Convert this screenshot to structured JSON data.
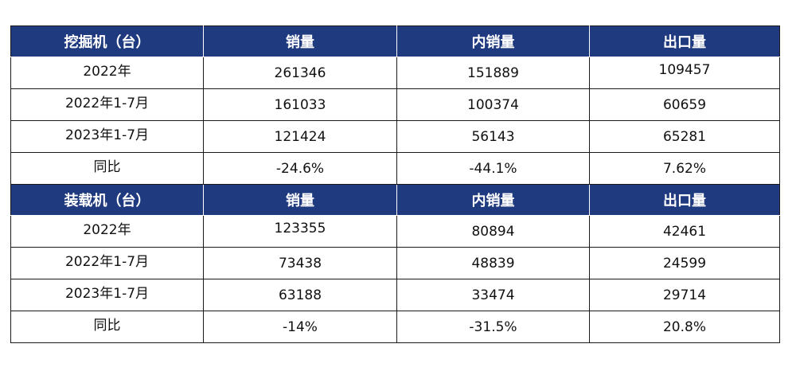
{
  "colors": {
    "header_bg": "#1f3a7f",
    "decrease": "#00a651",
    "increase": "#e8211e"
  },
  "columns": [
    "销量",
    "内销量",
    "出口量"
  ],
  "sections": [
    {
      "title": "挖掘机（台）",
      "rows": [
        {
          "label": "2022年",
          "values": [
            "261346",
            "151889",
            "109457"
          ]
        },
        {
          "label": "2022年1-7月",
          "values": [
            "161033",
            "100374",
            "60659"
          ]
        },
        {
          "label": "2023年1-7月",
          "values": [
            "121424",
            "56143",
            "65281"
          ]
        },
        {
          "label": "同比",
          "values": [
            "-24.6%",
            "-44.1%",
            "7.62%"
          ]
        }
      ]
    },
    {
      "title": "装载机（台）",
      "rows": [
        {
          "label": "2022年",
          "values": [
            "123355",
            "80894",
            "42461"
          ]
        },
        {
          "label": "2022年1-7月",
          "values": [
            "73438",
            "48839",
            "24599"
          ]
        },
        {
          "label": "2023年1-7月",
          "values": [
            "63188",
            "33474",
            "29714"
          ]
        },
        {
          "label": "同比",
          "values": [
            "-14%",
            "-31.5%",
            "20.8%"
          ]
        }
      ]
    }
  ]
}
